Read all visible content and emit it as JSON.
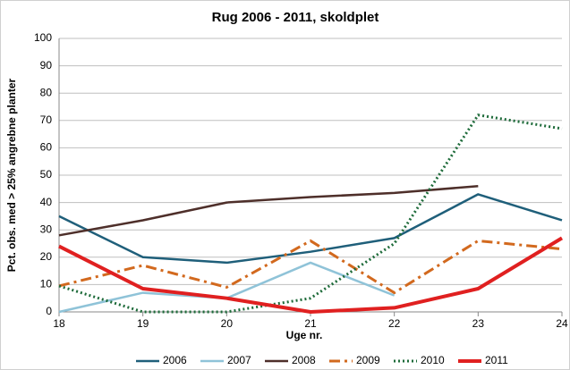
{
  "chart_data": {
    "type": "line",
    "title": "Rug 2006 - 2011, skoldplet",
    "x_label": "Uge nr.",
    "y_label": "Pct. obs. med > 25% angrebne planter",
    "x": [
      18,
      19,
      20,
      21,
      22,
      23,
      24
    ],
    "xlim": [
      18,
      24
    ],
    "xticks": [
      18,
      19,
      20,
      21,
      22,
      23,
      24
    ],
    "ylim": [
      0,
      100
    ],
    "yticks": [
      0,
      10,
      20,
      30,
      40,
      50,
      60,
      70,
      80,
      90,
      100
    ],
    "grid": true,
    "legend": "bottom",
    "series": [
      {
        "name": "2006",
        "color": "#1f5f7a",
        "style": "solid",
        "values": [
          35,
          20,
          18,
          22,
          27,
          43,
          33.5
        ]
      },
      {
        "name": "2007",
        "color": "#8fc3d8",
        "style": "solid",
        "values": [
          0,
          7,
          5,
          18,
          6,
          null,
          null
        ]
      },
      {
        "name": "2008",
        "color": "#4e2f2a",
        "style": "solid",
        "values": [
          28,
          33.5,
          40,
          42,
          43.5,
          46,
          null
        ]
      },
      {
        "name": "2009",
        "color": "#d2691e",
        "style": "dashdot",
        "values": [
          9.5,
          17,
          9,
          26,
          7,
          26,
          23
        ]
      },
      {
        "name": "2010",
        "color": "#1e6b3a",
        "style": "dot",
        "values": [
          9.5,
          0,
          0,
          5,
          25,
          72,
          67
        ]
      },
      {
        "name": "2011",
        "color": "#e02020",
        "style": "bold",
        "values": [
          24,
          8.5,
          5,
          0,
          1.5,
          8.5,
          27
        ]
      }
    ]
  }
}
